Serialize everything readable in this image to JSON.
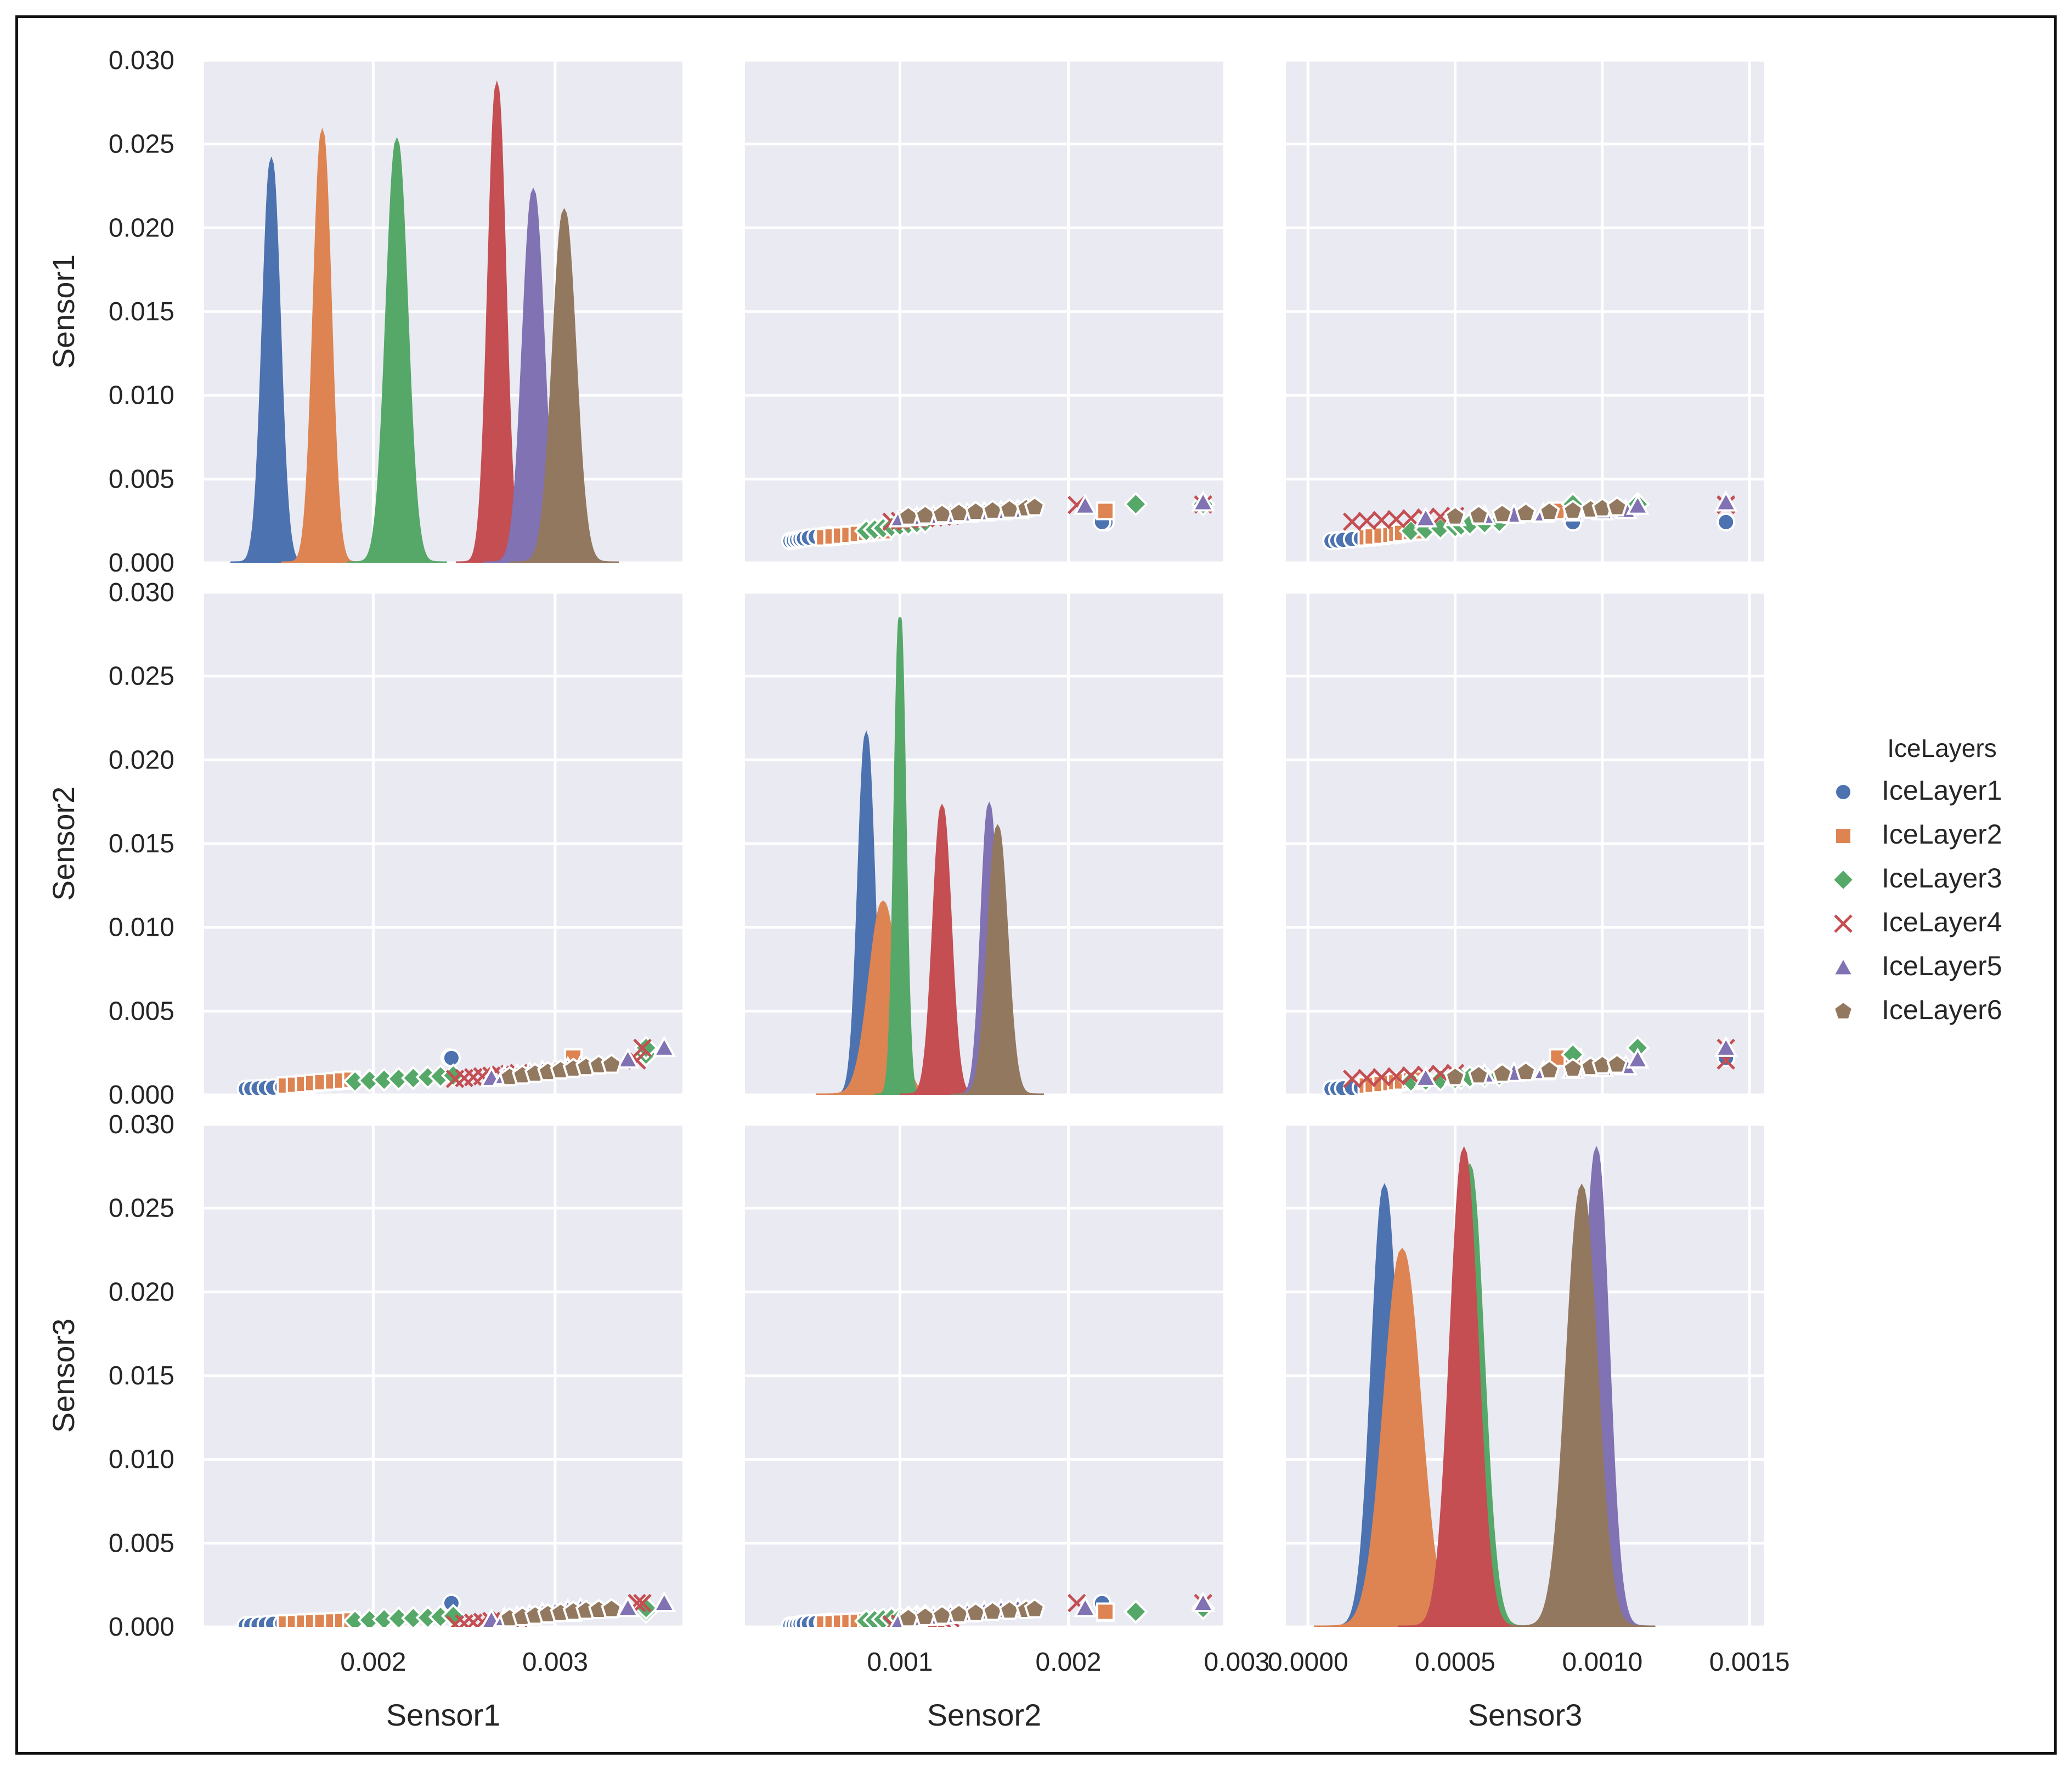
{
  "chart_data": {
    "type": "pairplot",
    "variables": [
      "Sensor1",
      "Sensor2",
      "Sensor3"
    ],
    "diagonal_kind": "kde",
    "offdiag_kind": "scatter",
    "axis_ranges": {
      "Sensor1": [
        0.00107,
        0.0037
      ],
      "Sensor2": [
        8e-05,
        0.00292
      ],
      "Sensor3": [
        -7.5e-05,
        0.00155
      ]
    },
    "diag_y_range": [
      0,
      0.03
    ],
    "x_ticks": {
      "Sensor1": [
        0.002,
        0.003
      ],
      "Sensor2": [
        0.001,
        0.002,
        0.003
      ],
      "Sensor3": [
        0.0,
        0.0005,
        0.001,
        0.0015
      ]
    },
    "x_tick_labels": {
      "Sensor1": [
        "0.002",
        "0.003"
      ],
      "Sensor2": [
        "0.001",
        "0.002",
        "0.003"
      ],
      "Sensor3": [
        "0.0000",
        "0.0005",
        "0.0010",
        "0.0015"
      ]
    },
    "y_ticks": [
      0,
      0.005,
      0.01,
      0.015,
      0.02,
      0.025,
      0.03
    ],
    "y_tick_labels": [
      "0.000",
      "0.005",
      "0.010",
      "0.015",
      "0.020",
      "0.025",
      "0.030"
    ],
    "legend": {
      "title": "IceLayers",
      "placement": "right-center",
      "entries": [
        "IceLayer1",
        "IceLayer2",
        "IceLayer3",
        "IceLayer4",
        "IceLayer5",
        "IceLayer6"
      ]
    },
    "series": [
      {
        "name": "IceLayer1",
        "color": "#4c72b0",
        "marker": "circle",
        "kde": {
          "Sensor1": {
            "peak": 0.00144,
            "sd": 4.5e-05,
            "height": 0.024
          },
          "Sensor2": {
            "peak": 0.0008,
            "sd": 4.5e-05,
            "height": 0.0215
          },
          "Sensor3": {
            "peak": 0.00026,
            "sd": 4.2e-05,
            "height": 0.0263
          }
        },
        "points": [
          [
            0.0013,
            0.00035,
            8e-05
          ],
          [
            0.00133,
            0.00037,
            0.0001
          ],
          [
            0.00137,
            0.00039,
            0.00012
          ],
          [
            0.00141,
            0.00041,
            0.00015
          ],
          [
            0.00145,
            0.00043,
            0.00018
          ],
          [
            0.0015,
            0.00046,
            0.0002
          ],
          [
            0.00155,
            0.0005,
            0.00023
          ],
          [
            0.0016,
            0.00054,
            0.00026
          ],
          [
            0.00165,
            0.00058,
            0.0003
          ],
          [
            0.00242,
            0.00222,
            0.0009
          ],
          [
            0.00243,
            0.0022,
            0.00142
          ]
        ]
      },
      {
        "name": "IceLayer2",
        "color": "#dd8452",
        "marker": "square",
        "kde": {
          "Sensor1": {
            "peak": 0.00172,
            "sd": 4.5e-05,
            "height": 0.0257
          },
          "Sensor2": {
            "peak": 0.0009,
            "sd": 8e-05,
            "height": 0.0115
          },
          "Sensor3": {
            "peak": 0.00032,
            "sd": 6e-05,
            "height": 0.0225
          }
        },
        "points": [
          [
            0.00152,
            0.00055,
            0.0002
          ],
          [
            0.00157,
            0.0006,
            0.00022
          ],
          [
            0.00162,
            0.00065,
            0.00025
          ],
          [
            0.00167,
            0.0007,
            0.00028
          ],
          [
            0.00172,
            0.00075,
            0.0003
          ],
          [
            0.00178,
            0.0008,
            0.00032
          ],
          [
            0.00183,
            0.00085,
            0.00035
          ],
          [
            0.00188,
            0.0009,
            0.00038
          ],
          [
            0.0031,
            0.00222,
            0.00085
          ],
          [
            0.0031,
            0.00222,
            0.0009
          ]
        ]
      },
      {
        "name": "IceLayer3",
        "color": "#55a868",
        "marker": "diamond",
        "kde": {
          "Sensor1": {
            "peak": 0.00213,
            "sd": 5.5e-05,
            "height": 0.0252
          },
          "Sensor2": {
            "peak": 0.001,
            "sd": 3e-05,
            "height": 0.0285
          },
          "Sensor3": {
            "peak": 0.00055,
            "sd": 4.5e-05,
            "height": 0.0275
          }
        },
        "points": [
          [
            0.0019,
            0.0008,
            0.00035
          ],
          [
            0.00198,
            0.00085,
            0.0004
          ],
          [
            0.00206,
            0.0009,
            0.00045
          ],
          [
            0.00214,
            0.00095,
            0.0005
          ],
          [
            0.00222,
            0.001,
            0.00052
          ],
          [
            0.0023,
            0.00105,
            0.00055
          ],
          [
            0.00237,
            0.0011,
            0.0006
          ],
          [
            0.00244,
            0.00115,
            0.00065
          ],
          [
            0.0035,
            0.0024,
            0.0009
          ],
          [
            0.0035,
            0.0028,
            0.00112
          ]
        ]
      },
      {
        "name": "IceLayer4",
        "color": "#c44e52",
        "marker": "x",
        "kde": {
          "Sensor1": {
            "peak": 0.00268,
            "sd": 4.5e-05,
            "height": 0.0285
          },
          "Sensor2": {
            "peak": 0.00125,
            "sd": 5e-05,
            "height": 0.0172
          },
          "Sensor3": {
            "peak": 0.00053,
            "sd": 4.5e-05,
            "height": 0.0285
          }
        },
        "points": [
          [
            0.00245,
            0.00095,
            0.00015
          ],
          [
            0.0025,
            0.001,
            0.0002
          ],
          [
            0.00255,
            0.00105,
            0.00025
          ],
          [
            0.0026,
            0.0011,
            0.0003
          ],
          [
            0.00265,
            0.00115,
            0.00035
          ],
          [
            0.0027,
            0.0012,
            0.0004
          ],
          [
            0.00275,
            0.00125,
            0.00045
          ],
          [
            0.0028,
            0.0013,
            0.0005
          ],
          [
            0.00345,
            0.00205,
            0.00142
          ],
          [
            0.00348,
            0.0028,
            0.00142
          ]
        ]
      },
      {
        "name": "IceLayer5",
        "color": "#8172b3",
        "marker": "triangle",
        "kde": {
          "Sensor1": {
            "peak": 0.00288,
            "sd": 5.5e-05,
            "height": 0.0222
          },
          "Sensor2": {
            "peak": 0.00153,
            "sd": 4.5e-05,
            "height": 0.0173
          },
          "Sensor3": {
            "peak": 0.00098,
            "sd": 4e-05,
            "height": 0.0285
          }
        },
        "points": [
          [
            0.00265,
            0.001,
            0.0004
          ],
          [
            0.00272,
            0.0011,
            0.0005
          ],
          [
            0.00279,
            0.0012,
            0.0006
          ],
          [
            0.00286,
            0.0013,
            0.0007
          ],
          [
            0.00293,
            0.0014,
            0.0008
          ],
          [
            0.003,
            0.0015,
            0.0009
          ],
          [
            0.00307,
            0.0016,
            0.001
          ],
          [
            0.00314,
            0.0017,
            0.00108
          ],
          [
            0.0034,
            0.0021,
            0.00112
          ],
          [
            0.0036,
            0.0028,
            0.00142
          ]
        ]
      },
      {
        "name": "IceLayer6",
        "color": "#937860",
        "marker": "pentagon",
        "kde": {
          "Sensor1": {
            "peak": 0.00305,
            "sd": 6e-05,
            "height": 0.021
          },
          "Sensor2": {
            "peak": 0.00158,
            "sd": 5.5e-05,
            "height": 0.016
          },
          "Sensor3": {
            "peak": 0.00093,
            "sd": 5e-05,
            "height": 0.0263
          }
        },
        "points": [
          [
            0.00275,
            0.00105,
            0.0005
          ],
          [
            0.00282,
            0.00115,
            0.00058
          ],
          [
            0.00289,
            0.00125,
            0.00066
          ],
          [
            0.00296,
            0.00135,
            0.00074
          ],
          [
            0.00303,
            0.00145,
            0.00082
          ],
          [
            0.0031,
            0.00155,
            0.0009
          ],
          [
            0.00317,
            0.00165,
            0.00096
          ],
          [
            0.00324,
            0.00175,
            0.001
          ],
          [
            0.00331,
            0.0018,
            0.00105
          ]
        ]
      }
    ]
  }
}
